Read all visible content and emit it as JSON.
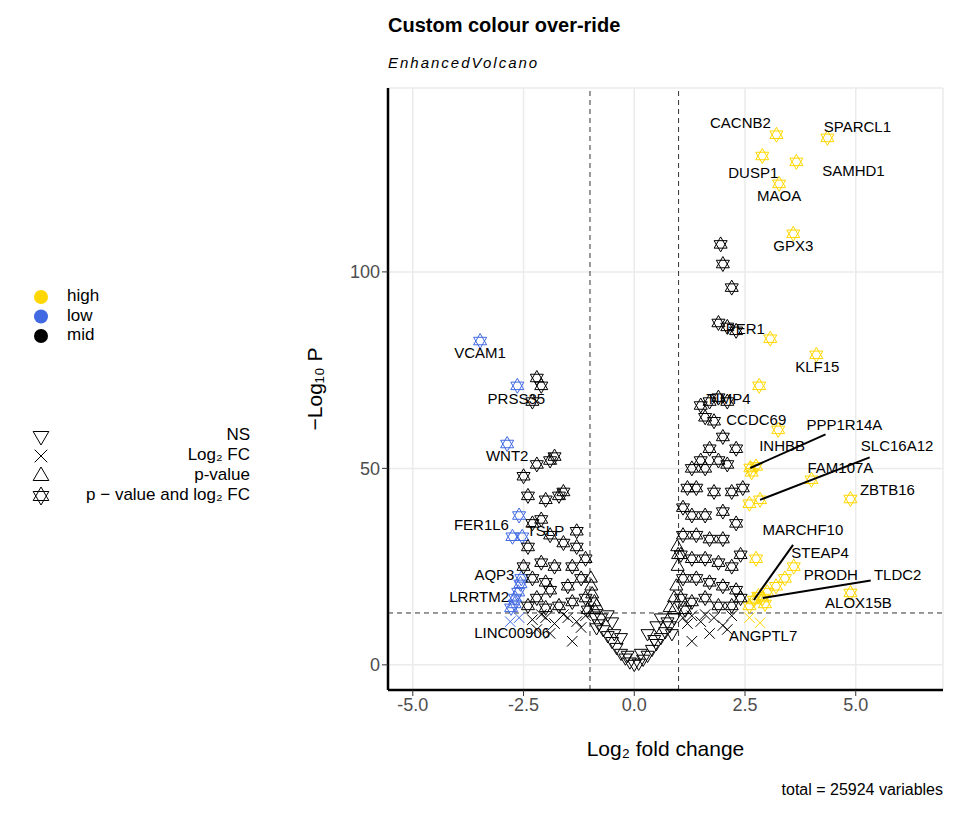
{
  "chart_data": {
    "type": "scatter",
    "title": "Custom colour over-ride",
    "subtitle": "EnhancedVolcano",
    "x_label": "Log₂ fold change",
    "y_label": "−Log₁₀ P",
    "caption": "total = 25924 variables",
    "xlim": [
      -5.56,
      6.97
    ],
    "ylim": [
      -6.4,
      146.8
    ],
    "xticks": [
      {
        "value": -5,
        "label": "-5.0"
      },
      {
        "value": -2.5,
        "label": "-2.5"
      },
      {
        "value": 0,
        "label": "0.0"
      },
      {
        "value": 2.5,
        "label": "2.5"
      },
      {
        "value": 5,
        "label": "5.0"
      }
    ],
    "yticks": [
      0,
      50,
      100
    ],
    "grid": true,
    "fc_cutoff": [
      -1,
      1
    ],
    "p_cutoff": 13.2,
    "shapes": [
      {
        "name": "NS",
        "marker": "triangle-down"
      },
      {
        "name": "Log₂ FC",
        "marker": "cross"
      },
      {
        "name": "p-value",
        "marker": "triangle-up"
      },
      {
        "name": "p − value and log₂ FC",
        "marker": "hexagram"
      }
    ],
    "series": [
      {
        "name": "high",
        "color": "#FFD700",
        "points": {
          "Log₂ FC": [
            [
              2.84,
              10.7
            ],
            [
              2.6,
              12.0
            ]
          ],
          "p − value and log₂ FC": [
            [
              3.21,
              134.9
            ],
            [
              4.36,
              134.1
            ],
            [
              3.66,
              128.0
            ],
            [
              2.89,
              129.5
            ],
            [
              3.27,
              122.4
            ],
            [
              3.59,
              109.7
            ],
            [
              3.07,
              83.0
            ],
            [
              4.11,
              78.9
            ],
            [
              2.82,
              71.0
            ],
            [
              3.25,
              59.8
            ],
            [
              2.62,
              50.1
            ],
            [
              2.75,
              50.5
            ],
            [
              2.84,
              42.0
            ],
            [
              4.0,
              47.1
            ],
            [
              4.88,
              42.2
            ],
            [
              2.7,
              16.5
            ],
            [
              2.75,
              27.0
            ],
            [
              3.6,
              25.0
            ],
            [
              2.9,
              17.0
            ],
            [
              4.88,
              18.3
            ],
            [
              2.8,
              17.5
            ],
            [
              3.0,
              18.5
            ],
            [
              2.6,
              15.0
            ],
            [
              3.4,
              22.0
            ],
            [
              3.2,
              20.0
            ],
            [
              2.65,
              49.0
            ],
            [
              2.6,
              41.0
            ],
            [
              2.95,
              15.5
            ]
          ]
        }
      },
      {
        "name": "low",
        "color": "#4169E1",
        "points": {
          "Log₂ FC": [
            [
              -2.6,
              12.0
            ],
            [
              -2.8,
              11.0
            ]
          ],
          "p − value and log₂ FC": [
            [
              -3.48,
              82.4
            ],
            [
              -2.64,
              71.0
            ],
            [
              -2.87,
              56.2
            ],
            [
              -2.75,
              32.6
            ],
            [
              -2.53,
              32.6
            ],
            [
              -2.57,
              20.6
            ],
            [
              -2.69,
              17.0
            ],
            [
              -2.78,
              14.5
            ],
            [
              -2.6,
              38.0
            ],
            [
              -2.55,
              22.0
            ],
            [
              -2.7,
              15.5
            ],
            [
              -2.62,
              18.5
            ]
          ]
        }
      },
      {
        "name": "mid",
        "color": "#000000",
        "points": {
          "NS": [
            [
              0,
              0.2
            ],
            [
              0.1,
              0.5
            ],
            [
              -0.1,
              0.8
            ],
            [
              0.2,
              1.5
            ],
            [
              -0.2,
              1.8
            ],
            [
              0.3,
              2.5
            ],
            [
              -0.3,
              3
            ],
            [
              0.4,
              4
            ],
            [
              -0.4,
              4.5
            ],
            [
              0.5,
              5.5
            ],
            [
              -0.5,
              6
            ],
            [
              0.6,
              7
            ],
            [
              -0.6,
              7.5
            ],
            [
              0.7,
              8.5
            ],
            [
              -0.7,
              9
            ],
            [
              0.8,
              10
            ],
            [
              -0.8,
              10.5
            ],
            [
              0.9,
              12
            ],
            [
              -0.9,
              12.5
            ],
            [
              0.5,
              10
            ],
            [
              -0.5,
              11
            ],
            [
              0.3,
              8
            ],
            [
              -0.3,
              7
            ],
            [
              0.6,
              12
            ],
            [
              -0.6,
              12.8
            ],
            [
              0.15,
              3
            ],
            [
              -0.15,
              2.5
            ],
            [
              0.45,
              6.5
            ],
            [
              -0.45,
              8
            ],
            [
              0.75,
              11
            ],
            [
              -0.75,
              12
            ],
            [
              0.85,
              8
            ],
            [
              -0.85,
              9.5
            ]
          ],
          "Log₂ FC": [
            [
              1.1,
              12
            ],
            [
              1.3,
              12.5
            ],
            [
              1.5,
              11
            ],
            [
              1.8,
              12
            ],
            [
              2.0,
              10
            ],
            [
              2.2,
              12.5
            ],
            [
              1.2,
              10.5
            ],
            [
              -1.1,
              12.5
            ],
            [
              -1.3,
              11
            ],
            [
              -1.5,
              12
            ],
            [
              -1.8,
              10.5
            ],
            [
              -2.0,
              12
            ],
            [
              -2.3,
              11.5
            ],
            [
              -1.2,
              9.5
            ],
            [
              -1.6,
              12.8
            ],
            [
              1.6,
              12.8
            ],
            [
              -2.1,
              12.8
            ],
            [
              -1.9,
              8
            ],
            [
              -2.2,
              9
            ],
            [
              1.7,
              8
            ],
            [
              2.1,
              9
            ],
            [
              1.3,
              6
            ],
            [
              -1.4,
              6
            ]
          ],
          "p-value": [
            [
              0.9,
              14
            ],
            [
              -0.9,
              14
            ],
            [
              0.95,
              20
            ],
            [
              -0.95,
              18
            ],
            [
              0.98,
              25
            ],
            [
              -0.98,
              22
            ],
            [
              0.9,
              17
            ],
            [
              -0.9,
              16
            ],
            [
              0.8,
              14.5
            ],
            [
              -0.85,
              15
            ],
            [
              0.97,
              30
            ],
            [
              0.99,
              28
            ],
            [
              -0.97,
              20
            ]
          ],
          "p − value and log₂ FC": [
            [
              1.95,
              107
            ],
            [
              2.0,
              102
            ],
            [
              2.2,
              96
            ],
            [
              1.9,
              87
            ],
            [
              2.1,
              86
            ],
            [
              2.3,
              85
            ],
            [
              1.5,
              66
            ],
            [
              1.7,
              67
            ],
            [
              1.9,
              68
            ],
            [
              2.1,
              67
            ],
            [
              1.6,
              63
            ],
            [
              1.8,
              62
            ],
            [
              2.0,
              58
            ],
            [
              1.7,
              55
            ],
            [
              1.5,
              52
            ],
            [
              1.9,
              52
            ],
            [
              1.3,
              50
            ],
            [
              1.6,
              50
            ],
            [
              2.1,
              51
            ],
            [
              1.2,
              45
            ],
            [
              1.4,
              45
            ],
            [
              1.8,
              44
            ],
            [
              2.2,
              44
            ],
            [
              1.1,
              40
            ],
            [
              1.3,
              38
            ],
            [
              1.6,
              38
            ],
            [
              2.0,
              39
            ],
            [
              2.3,
              36
            ],
            [
              1.1,
              33
            ],
            [
              1.4,
              33
            ],
            [
              1.7,
              32
            ],
            [
              2.0,
              32
            ],
            [
              1.05,
              28
            ],
            [
              1.3,
              27
            ],
            [
              1.6,
              27
            ],
            [
              1.9,
              26
            ],
            [
              2.2,
              25
            ],
            [
              1.1,
              22
            ],
            [
              1.4,
              22
            ],
            [
              1.7,
              21
            ],
            [
              2.0,
              20
            ],
            [
              2.3,
              19
            ],
            [
              1.05,
              17
            ],
            [
              1.3,
              16
            ],
            [
              1.6,
              17
            ],
            [
              1.9,
              15
            ],
            [
              2.2,
              15
            ],
            [
              1.15,
              14
            ],
            [
              2.4,
              17
            ],
            [
              2.4,
              28
            ],
            [
              2.3,
              55
            ],
            [
              2.45,
              45
            ],
            [
              -2.2,
              73
            ],
            [
              -2.1,
              71
            ],
            [
              -2.3,
              67
            ],
            [
              -1.9,
              52
            ],
            [
              -1.8,
              53
            ],
            [
              -2.2,
              51
            ],
            [
              -2.5,
              48
            ],
            [
              -2.4,
              43
            ],
            [
              -2.0,
              42
            ],
            [
              -2.1,
              37
            ],
            [
              -1.6,
              44
            ],
            [
              -1.7,
              43
            ],
            [
              -2.3,
              36
            ],
            [
              -1.9,
              33
            ],
            [
              -1.6,
              31
            ],
            [
              -1.3,
              30
            ],
            [
              -1.1,
              27
            ],
            [
              -1.4,
              25
            ],
            [
              -1.8,
              25
            ],
            [
              -2.1,
              26
            ],
            [
              -2.4,
              30
            ],
            [
              -2.3,
              22
            ],
            [
              -1.2,
              22
            ],
            [
              -1.5,
              20
            ],
            [
              -1.9,
              19
            ],
            [
              -2.2,
              17
            ],
            [
              -1.1,
              17
            ],
            [
              -1.4,
              16
            ],
            [
              -1.7,
              15
            ],
            [
              -2.0,
              14.5
            ],
            [
              -2.4,
              15
            ],
            [
              -1.05,
              14
            ],
            [
              -1.3,
              34
            ],
            [
              -2.0,
              21
            ],
            [
              -2.5,
              25
            ]
          ]
        }
      }
    ],
    "labels": [
      {
        "text": "CACNB2",
        "x": 3.21,
        "y": 134.9
      },
      {
        "text": "SPARCL1",
        "x": 4.36,
        "y": 134.1
      },
      {
        "text": "SAMHD1",
        "x": 3.66,
        "y": 128.0
      },
      {
        "text": "DUSP1",
        "x": 2.89,
        "y": 129.5
      },
      {
        "text": "MAOA",
        "x": 3.27,
        "y": 122.4
      },
      {
        "text": "GPX3",
        "x": 3.59,
        "y": 109.7
      },
      {
        "text": "PER1",
        "x": 3.07,
        "y": 83.0
      },
      {
        "text": "KLF15",
        "x": 4.11,
        "y": 78.9
      },
      {
        "text": "TIMP4",
        "x": 1.9,
        "y": 68
      },
      {
        "text": "CCDC69",
        "x": 3.25,
        "y": 59.8
      },
      {
        "text": "PPP1R14A",
        "x": 2.62,
        "y": 50.1
      },
      {
        "text": "INHBB",
        "x": 2.75,
        "y": 50.5
      },
      {
        "text": "SLC16A12",
        "x": 2.84,
        "y": 42.0
      },
      {
        "text": "FAM107A",
        "x": 4.0,
        "y": 47.1
      },
      {
        "text": "ZBTB16",
        "x": 4.88,
        "y": 42.2
      },
      {
        "text": "MARCHF10",
        "x": 2.7,
        "y": 16.5
      },
      {
        "text": "STEAP4",
        "x": 2.75,
        "y": 27.0
      },
      {
        "text": "PRODH",
        "x": 3.6,
        "y": 25.0
      },
      {
        "text": "TLDC2",
        "x": 2.9,
        "y": 17.0
      },
      {
        "text": "ALOX15B",
        "x": 4.88,
        "y": 18.3
      },
      {
        "text": "ANGPTL7",
        "x": 2.84,
        "y": 10.7
      },
      {
        "text": "VCAM1",
        "x": -3.48,
        "y": 82.4
      },
      {
        "text": "PRSS35",
        "x": -2.64,
        "y": 71.0
      },
      {
        "text": "WNT2",
        "x": -2.87,
        "y": 56.2
      },
      {
        "text": "FER1L6",
        "x": -2.75,
        "y": 32.6
      },
      {
        "text": "TSLP",
        "x": -2.3,
        "y": 36
      },
      {
        "text": "AQP3",
        "x": -2.57,
        "y": 20.6
      },
      {
        "text": "LRRTM2",
        "x": -2.69,
        "y": 17.0
      },
      {
        "text": "LINC00906",
        "x": -2.78,
        "y": 14.5
      }
    ]
  }
}
